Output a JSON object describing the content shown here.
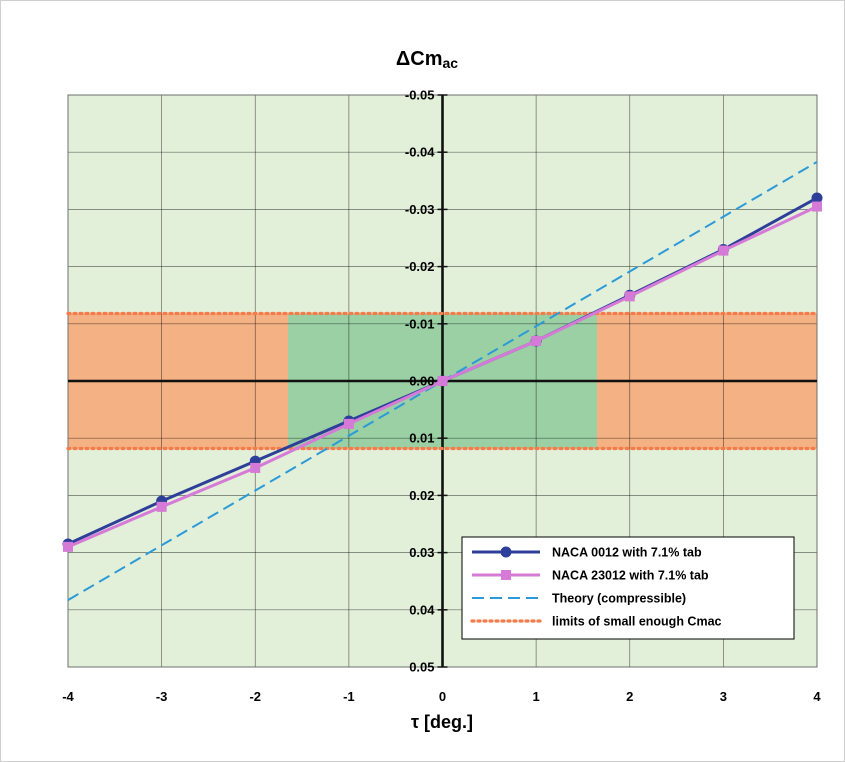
{
  "chart_data": {
    "type": "line",
    "title": "ΔCm",
    "title_subscript": "ac",
    "xlabel": "τ [deg.]",
    "ylabel": "",
    "xlim": [
      -4,
      4
    ],
    "ylim": [
      0.05,
      -0.05
    ],
    "y_axis_inverted": true,
    "grid": true,
    "x_ticks": [
      -4,
      -3,
      -2,
      -1,
      0,
      1,
      2,
      3,
      4
    ],
    "x_tick_labels": [
      "-4",
      "-3",
      "-2",
      "-1",
      "0",
      "1",
      "2",
      "3",
      "4"
    ],
    "y_ticks": [
      -0.05,
      -0.04,
      -0.03,
      -0.02,
      -0.01,
      0.0,
      0.01,
      0.02,
      0.03,
      0.04,
      0.05
    ],
    "y_tick_labels": [
      "-0.05",
      "-0.04",
      "-0.03",
      "-0.02",
      "-0.01",
      "0.00",
      "0.01",
      "0.02",
      "0.03",
      "0.04",
      "0.05"
    ],
    "regions": {
      "band_ylim": [
        -0.0118,
        0.0118
      ],
      "small_enough_x_range": [
        -1.65,
        1.65
      ],
      "outside_color": "#f4b183",
      "inside_color": "#9ad0a4",
      "background_color": "#e2efd9"
    },
    "series": [
      {
        "name": "NACA 0012 with 7.1% tab",
        "color": "#2e3f99",
        "marker": "circle",
        "x": [
          -4,
          -3,
          -2,
          -1,
          0,
          1,
          2,
          3,
          4
        ],
        "y": [
          0.0285,
          0.021,
          0.014,
          0.007,
          0.0,
          -0.007,
          -0.015,
          -0.023,
          -0.032
        ]
      },
      {
        "name": "NACA 23012 with 7.1% tab",
        "color": "#d57ad6",
        "marker": "square",
        "x": [
          -4,
          -3,
          -2,
          -1,
          0,
          1,
          2,
          3,
          4
        ],
        "y": [
          0.029,
          0.022,
          0.0152,
          0.0075,
          0.0,
          -0.007,
          -0.0148,
          -0.0228,
          -0.0305
        ]
      },
      {
        "name": "Theory (compressible)",
        "color": "#2b9ad8",
        "dash": "dashed",
        "x": [
          -4,
          4
        ],
        "y": [
          0.0383,
          -0.0383
        ]
      },
      {
        "name": "limits of small enough Cmac",
        "color": "#f47c4b",
        "dash": "dotted",
        "y_lines": [
          -0.0118,
          0.0118
        ]
      }
    ],
    "legend_position": "bottom-right"
  }
}
